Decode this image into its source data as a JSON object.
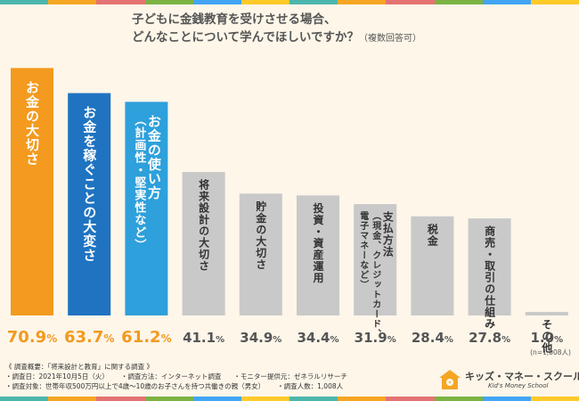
{
  "colors": {
    "background": "#fdf6e9",
    "orange": "#f39a1f",
    "blue": "#1f73c1",
    "lightblue": "#2ea0db",
    "gray": "#c9c9c9",
    "value_orange": "#f39a1f",
    "value_gray": "#555555",
    "stripe": [
      "#4db6ac",
      "#f5a623",
      "#e57373",
      "#7cb342",
      "#42a5f5",
      "#ffca28"
    ]
  },
  "title": {
    "line1": "子どもに金銭教育を受けさせる場合、",
    "line2": "どんなことについて学んでほしいですか？",
    "note": "（複数回答可）"
  },
  "chart_data": {
    "type": "bar",
    "title": "子どもに金銭教育を受けさせる場合、どんなことについて学んでほしいですか？（複数回答可）",
    "categories": [
      "お金の大切さ",
      "お金を稼ぐことの大変さ",
      "お金の使い方（計画性・堅実性など）",
      "将来設計の大切さ",
      "貯金の大切さ",
      "投資・資産運用",
      "支払方法（現金、クレジットカード、電子マネーなど）",
      "税金",
      "商売・取引の仕組み",
      "その他"
    ],
    "bar_labels": [
      [
        "お金の大切さ"
      ],
      [
        "お金を稼ぐことの大変さ"
      ],
      [
        "お金の使い方",
        "（計画性・堅実性など）"
      ],
      [
        "将来設計の大切さ"
      ],
      [
        "貯金の大切さ"
      ],
      [
        "投資・資産運用"
      ],
      [
        "支払方法",
        "（現金、クレジットカード、",
        "電子マネーなど）"
      ],
      [
        "税金"
      ],
      [
        "商売・取引の仕組み"
      ],
      [
        "その他"
      ]
    ],
    "values": [
      70.9,
      63.7,
      61.2,
      41.1,
      34.9,
      34.4,
      31.9,
      28.4,
      27.8,
      1.0
    ],
    "value_labels": [
      [
        "70.9",
        "%"
      ],
      [
        "63.7",
        "%"
      ],
      [
        "61.2",
        "%"
      ],
      [
        "41.1",
        "%"
      ],
      [
        "34.9",
        "%"
      ],
      [
        "34.4",
        "%"
      ],
      [
        "31.9",
        "%"
      ],
      [
        "28.4",
        "%"
      ],
      [
        "27.8",
        "%"
      ],
      [
        "1.0",
        "%"
      ]
    ],
    "bar_colors": [
      "orange",
      "blue",
      "lightblue",
      "gray",
      "gray",
      "gray",
      "gray",
      "gray",
      "gray",
      "gray"
    ],
    "ylim": [
      0,
      72
    ],
    "n_label": "(n=1,008人)"
  },
  "footer": {
    "heading": "《 調査概要：「将来設計と教育」に関する調査 》",
    "date": "・調査日：2021年10月5日（火）",
    "method": "・調査方法：インターネット調査",
    "provider": "・モニター提供元：ゼネラルリサーチ",
    "target": "・調査対象：世帯年収500万円以上で4歳〜10歳のお子さんを持つ共働きの親（男女）",
    "count": "・調査人数：1,008人"
  },
  "logo": {
    "name": "キッズ・マネー・スクール",
    "sub": "Kid's Money School"
  }
}
